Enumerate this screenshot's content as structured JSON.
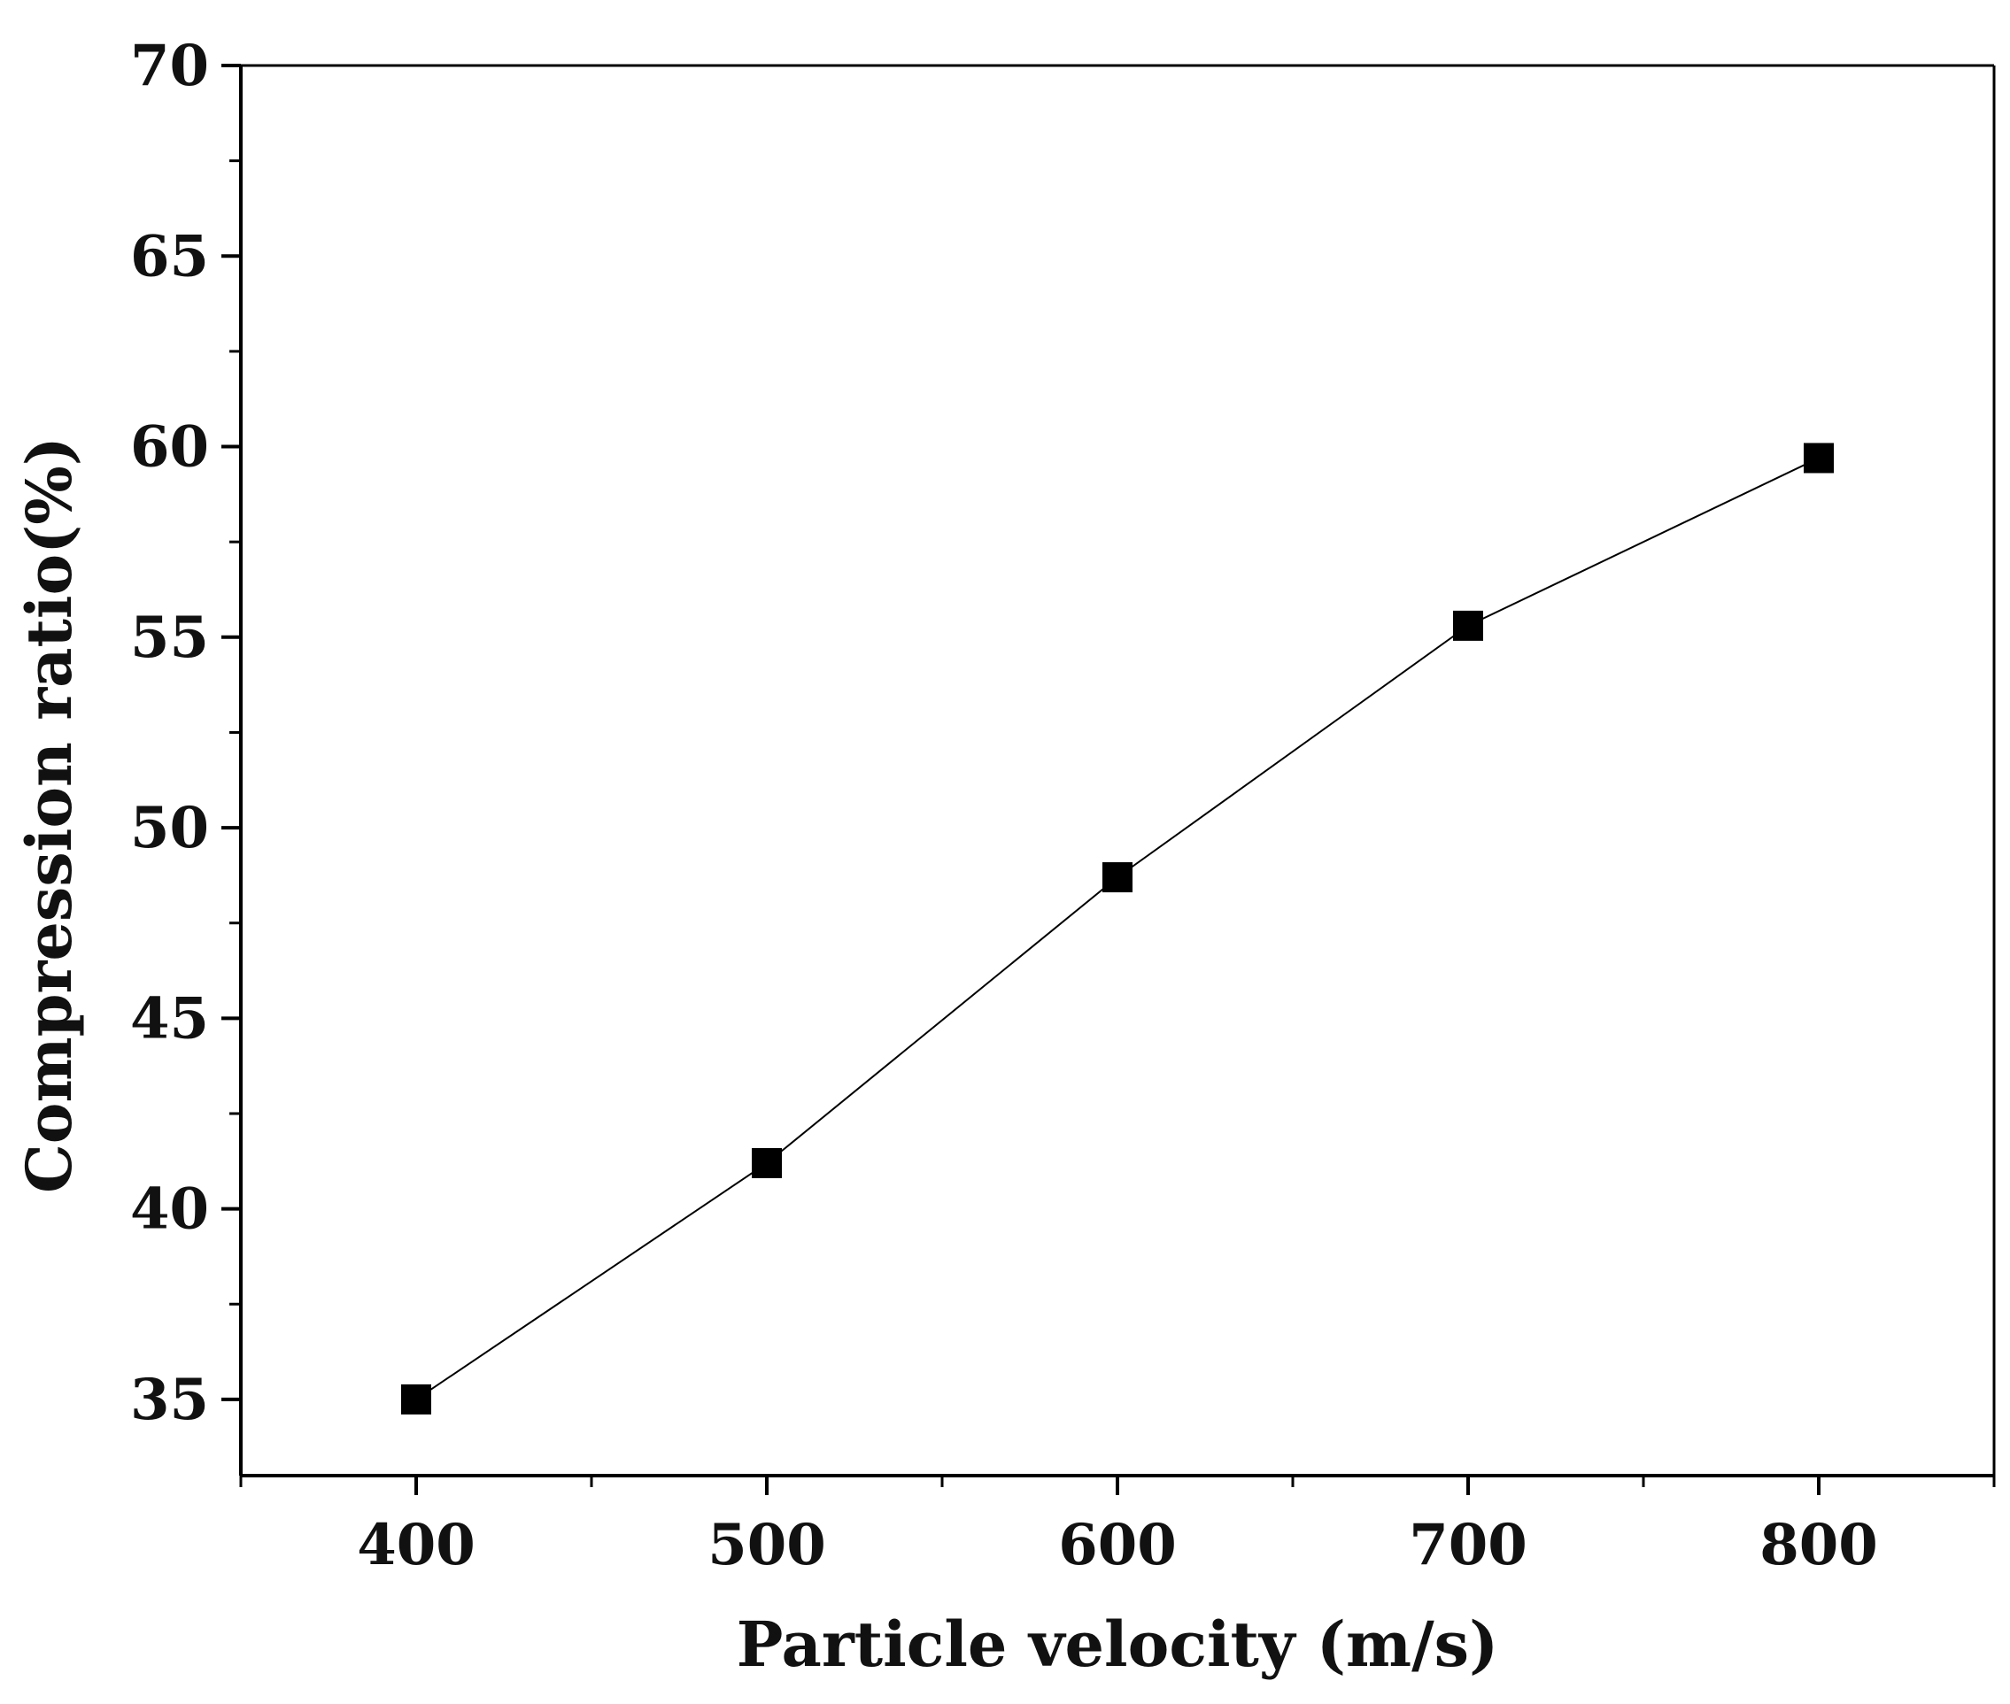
{
  "chart_data": {
    "type": "line",
    "title": "",
    "xlabel": "Particle velocity (m/s)",
    "ylabel": "Compression ratio(%)",
    "xlim": [
      350,
      850
    ],
    "ylim": [
      33,
      70
    ],
    "xticks": [
      400,
      500,
      600,
      700,
      800
    ],
    "yticks": [
      35,
      40,
      45,
      50,
      55,
      60,
      65,
      70
    ],
    "grid": false,
    "legend": "none",
    "marker": "square",
    "colors": {
      "series": "#000000",
      "axis": "#000000"
    },
    "series": [
      {
        "x": [
          400,
          500,
          600,
          700,
          800
        ],
        "values": [
          35.0,
          41.2,
          48.7,
          55.3,
          59.7
        ]
      }
    ]
  }
}
